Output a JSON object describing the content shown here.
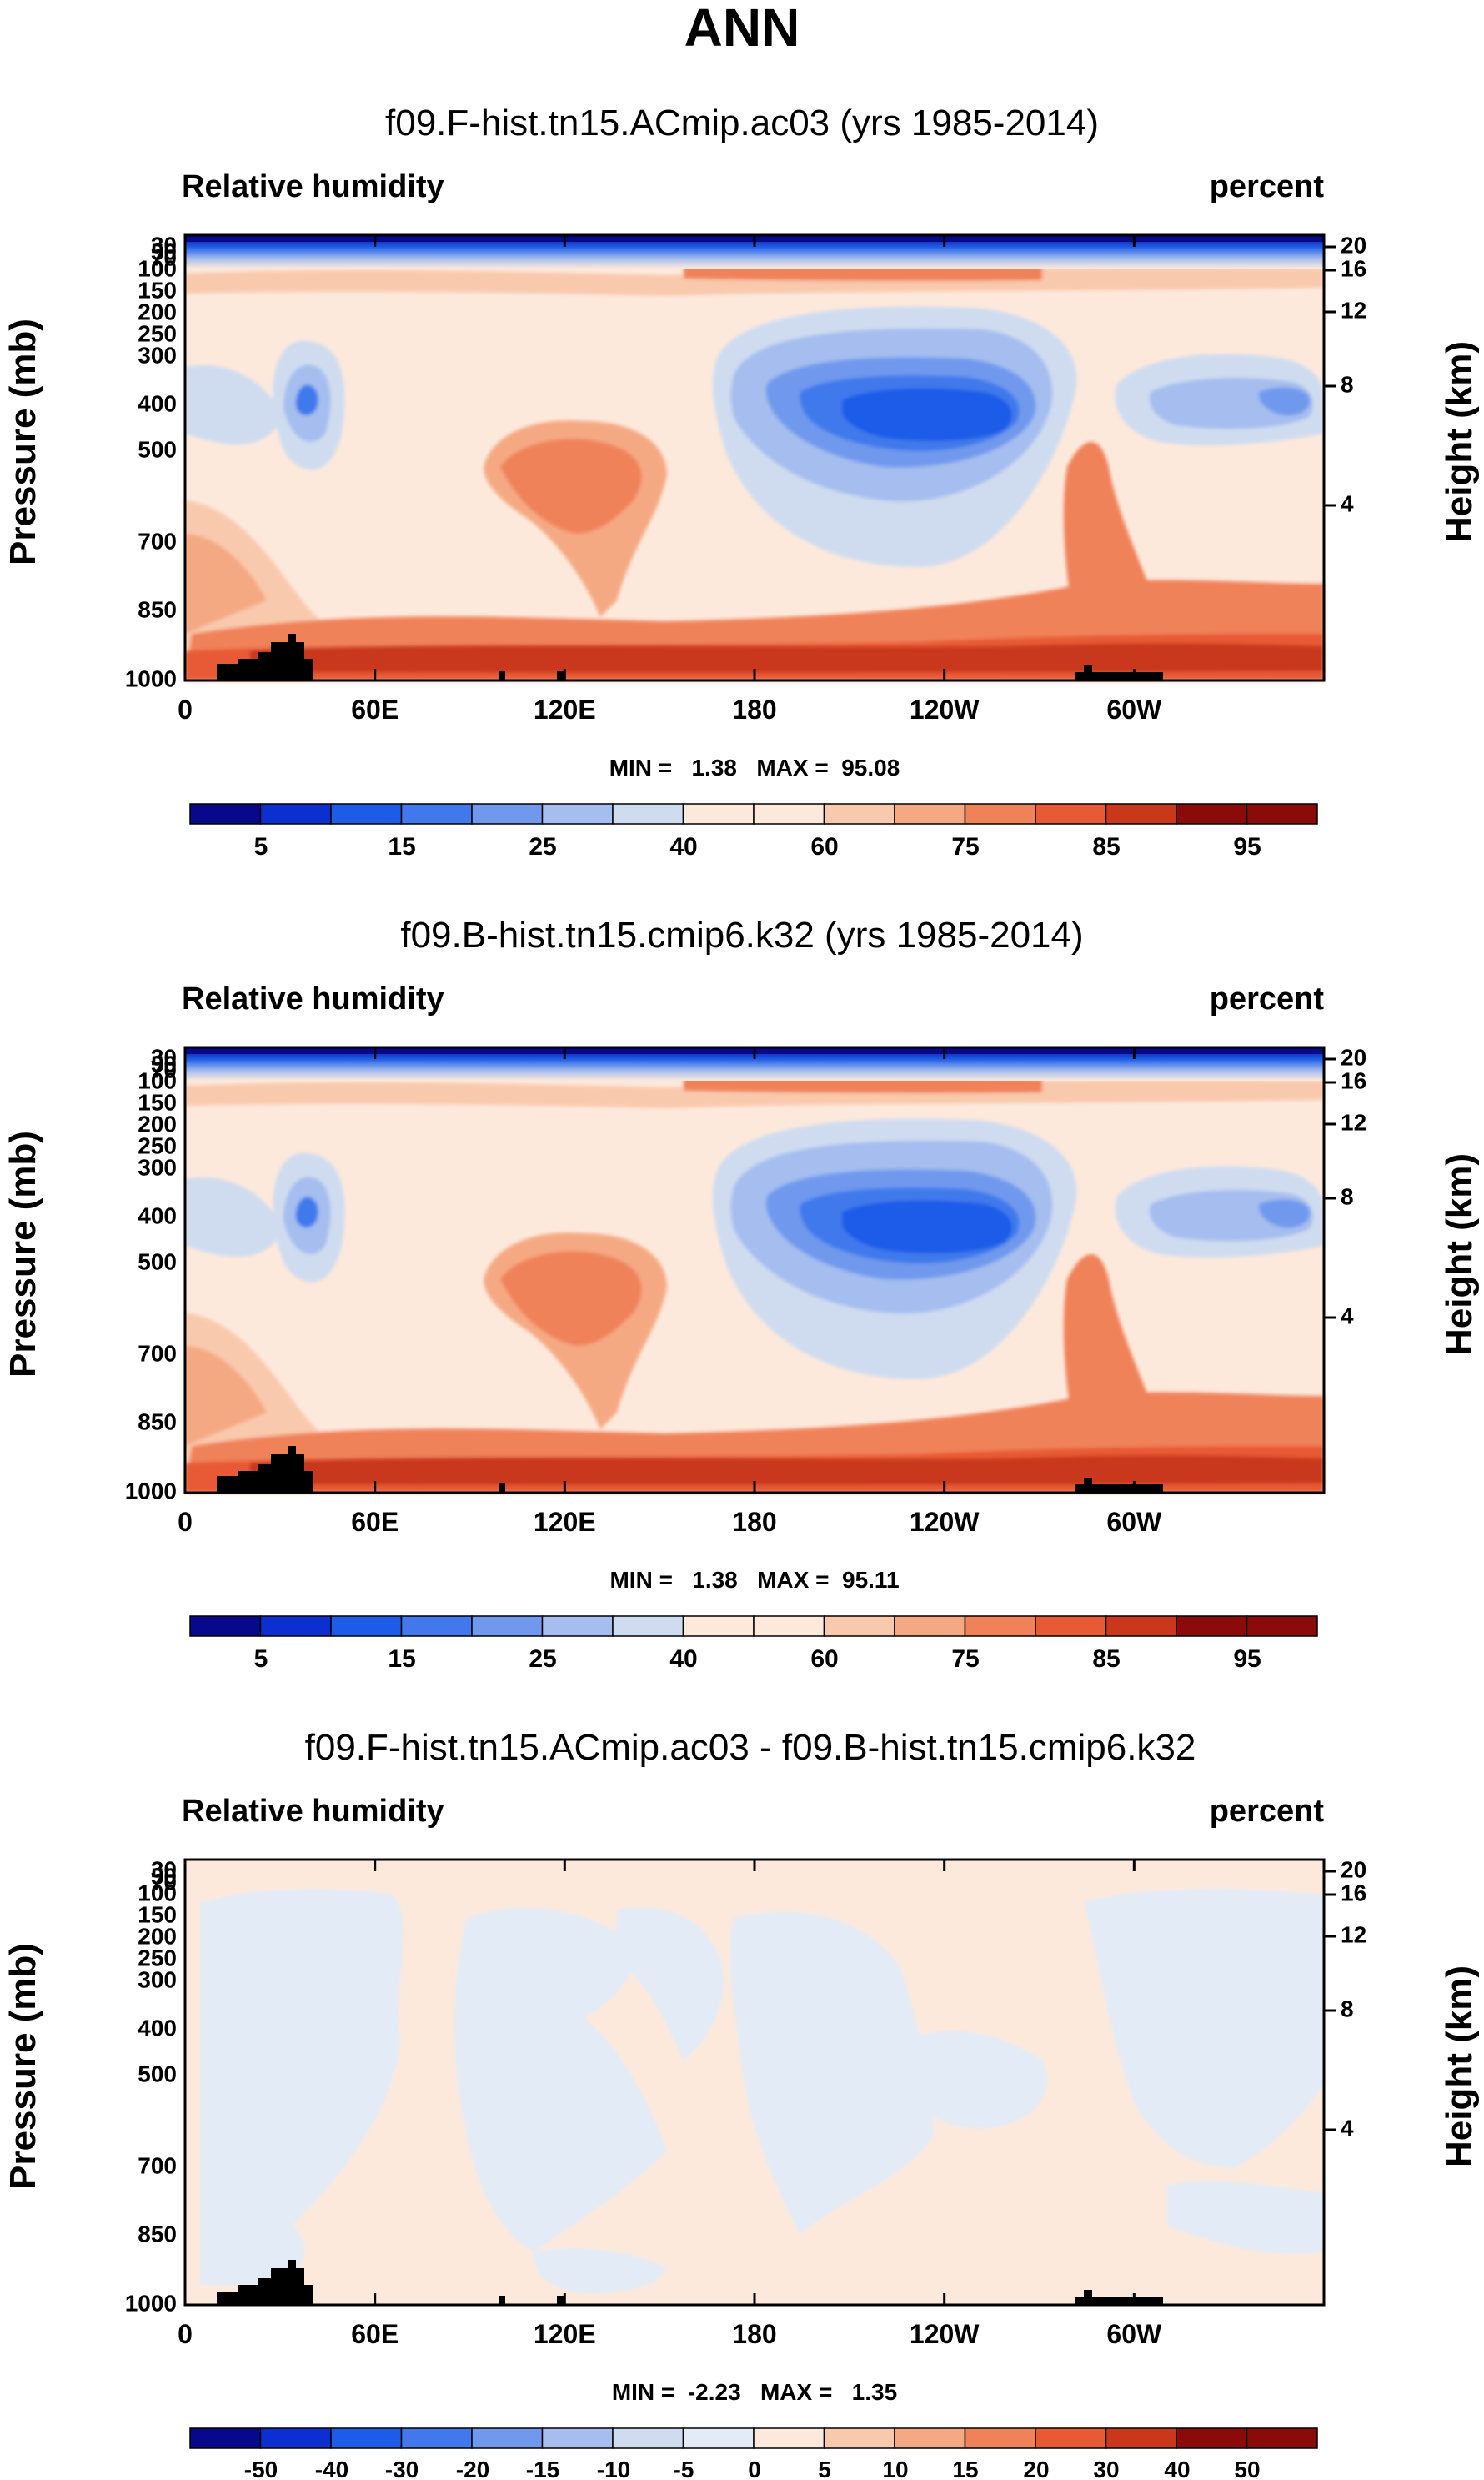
{
  "title": "ANN",
  "colors": {
    "rh_palette": [
      "#08088a",
      "#0b2fd0",
      "#1d5ce8",
      "#4179ec",
      "#7099ee",
      "#a5beef",
      "#cfdcf0",
      "#fde9dc",
      "#f9c9ad",
      "#f5a983",
      "#f0825a",
      "#e85a34",
      "#c9381b",
      "#8b0a0a"
    ],
    "diff_palette": [
      "#08088a",
      "#0b2fd0",
      "#1d5ce8",
      "#4179ec",
      "#7099ee",
      "#a5beef",
      "#cfdcf0",
      "#e2ebf6",
      "#fde9dc",
      "#f9c9ad",
      "#f5a983",
      "#f0825a",
      "#e85a34",
      "#c9381b",
      "#8b0a0a"
    ],
    "terrain": "#000000"
  },
  "chart_data": [
    {
      "type": "contour",
      "title": "f09.F-hist.tn15.ACmip.ac03 (yrs 1985-2014)",
      "left_label": "Relative humidity",
      "right_label": "percent",
      "ylabel": "Pressure (mb)",
      "ylabel_right": "Height (km)",
      "x_ticks": [
        "0",
        "60E",
        "120E",
        "180",
        "120W",
        "60W"
      ],
      "y_ticks": [
        "30",
        "50",
        "70",
        "100",
        "150",
        "200",
        "250",
        "300",
        "400",
        "500",
        "700",
        "850",
        "1000"
      ],
      "height_ticks": [
        "20",
        "16",
        "12",
        "8",
        "4"
      ],
      "stats": "MIN =   1.38   MAX =  95.08",
      "colorbar_labels": [
        "5",
        "15",
        "25",
        "40",
        "60",
        "75",
        "85",
        "95"
      ],
      "levels": [
        5,
        10,
        15,
        20,
        25,
        30,
        40,
        50,
        60,
        70,
        75,
        80,
        85,
        90,
        95
      ],
      "min": 1.38,
      "max": 95.08
    },
    {
      "type": "contour",
      "title": "f09.B-hist.tn15.cmip6.k32 (yrs 1985-2014)",
      "left_label": "Relative humidity",
      "right_label": "percent",
      "ylabel": "Pressure (mb)",
      "ylabel_right": "Height (km)",
      "x_ticks": [
        "0",
        "60E",
        "120E",
        "180",
        "120W",
        "60W"
      ],
      "y_ticks": [
        "30",
        "50",
        "70",
        "100",
        "150",
        "200",
        "250",
        "300",
        "400",
        "500",
        "700",
        "850",
        "1000"
      ],
      "height_ticks": [
        "20",
        "16",
        "12",
        "8",
        "4"
      ],
      "stats": "MIN =   1.38   MAX =  95.11",
      "colorbar_labels": [
        "5",
        "15",
        "25",
        "40",
        "60",
        "75",
        "85",
        "95"
      ],
      "levels": [
        5,
        10,
        15,
        20,
        25,
        30,
        40,
        50,
        60,
        70,
        75,
        80,
        85,
        90,
        95
      ],
      "min": 1.38,
      "max": 95.11
    },
    {
      "type": "contour",
      "title": "f09.F-hist.tn15.ACmip.ac03 - f09.B-hist.tn15.cmip6.k32",
      "left_label": "Relative humidity",
      "right_label": "percent",
      "ylabel": "Pressure (mb)",
      "ylabel_right": "Height (km)",
      "x_ticks": [
        "0",
        "60E",
        "120E",
        "180",
        "120W",
        "60W"
      ],
      "y_ticks": [
        "30",
        "50",
        "70",
        "100",
        "150",
        "200",
        "250",
        "300",
        "400",
        "500",
        "700",
        "850",
        "1000"
      ],
      "height_ticks": [
        "20",
        "16",
        "12",
        "8",
        "4"
      ],
      "stats": "MIN =  -2.23   MAX =   1.35",
      "colorbar_labels": [
        "-50",
        "-40",
        "-30",
        "-20",
        "-15",
        "-10",
        "-5",
        "0",
        "5",
        "10",
        "15",
        "20",
        "30",
        "40",
        "50"
      ],
      "levels": [
        -50,
        -40,
        -30,
        -20,
        -15,
        -10,
        -5,
        0,
        5,
        10,
        15,
        20,
        30,
        40,
        50
      ],
      "min": -2.23,
      "max": 1.35
    }
  ]
}
